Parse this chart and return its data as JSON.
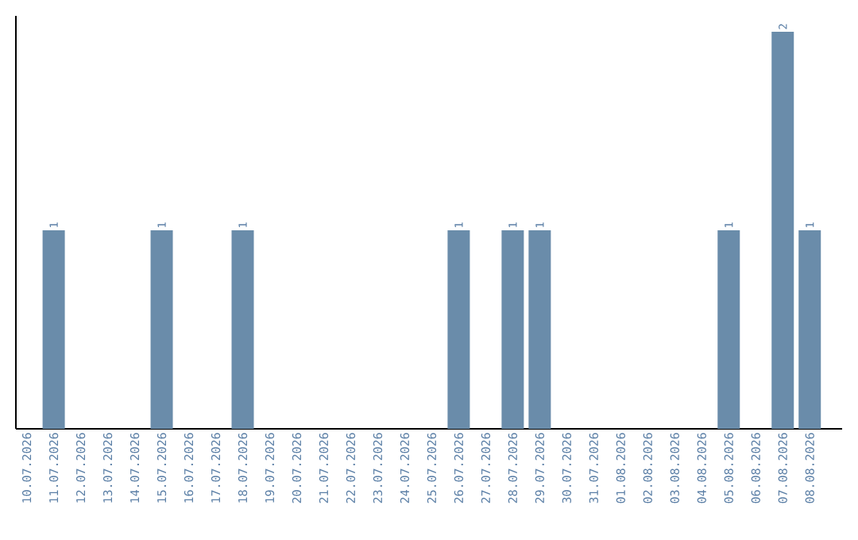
{
  "chart_data": {
    "type": "bar",
    "categories": [
      "10.07.2026",
      "11.07.2026",
      "12.07.2026",
      "13.07.2026",
      "14.07.2026",
      "15.07.2026",
      "16.07.2026",
      "17.07.2026",
      "18.07.2026",
      "19.07.2026",
      "20.07.2026",
      "21.07.2026",
      "22.07.2026",
      "23.07.2026",
      "24.07.2026",
      "25.07.2026",
      "26.07.2026",
      "27.07.2026",
      "28.07.2026",
      "29.07.2026",
      "30.07.2026",
      "31.07.2026",
      "01.08.2026",
      "02.08.2026",
      "03.08.2026",
      "04.08.2026",
      "05.08.2026",
      "06.08.2026",
      "07.08.2026",
      "08.08.2026"
    ],
    "values": [
      0,
      1,
      0,
      0,
      0,
      1,
      0,
      0,
      1,
      0,
      0,
      0,
      0,
      0,
      0,
      0,
      1,
      0,
      1,
      1,
      0,
      0,
      0,
      0,
      0,
      0,
      1,
      0,
      2,
      1
    ],
    "value_labels": [
      null,
      "1",
      null,
      null,
      null,
      "1",
      null,
      null,
      "1",
      null,
      null,
      null,
      null,
      null,
      null,
      null,
      "1",
      null,
      "1",
      "1",
      null,
      null,
      null,
      null,
      null,
      null,
      "1",
      null,
      "2",
      "1"
    ],
    "color": "#6a8caa",
    "tick_labels": "x"
  }
}
